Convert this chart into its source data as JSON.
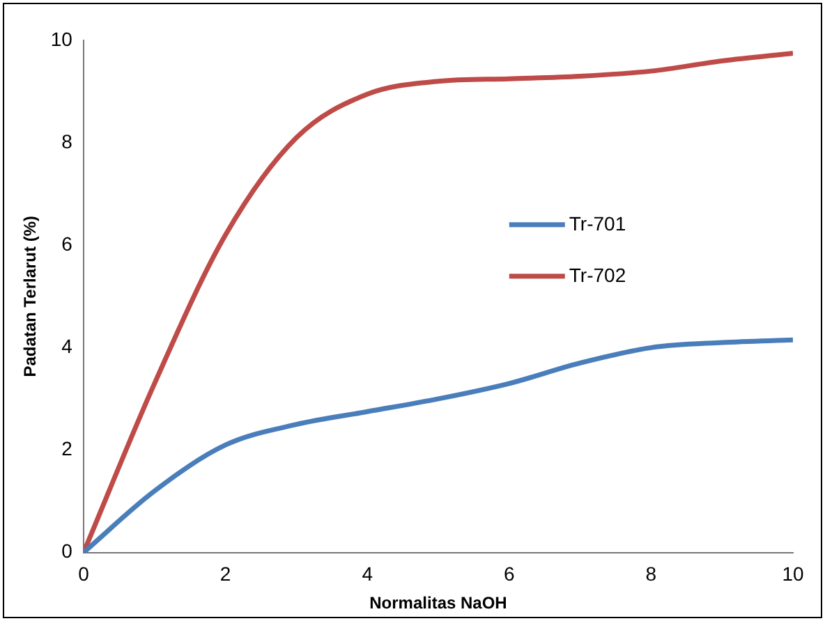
{
  "chart_data": {
    "type": "line",
    "xlabel": "Normalitas NaOH",
    "ylabel": "Padatan Terlarut (%)",
    "x": [
      0,
      1,
      2,
      3,
      4,
      5,
      6,
      7,
      8,
      9,
      10
    ],
    "series": [
      {
        "name": "Tr-701",
        "color": "#4a7ebb",
        "values": [
          0,
          1.2,
          2.1,
          2.5,
          2.75,
          3.0,
          3.3,
          3.7,
          4.0,
          4.1,
          4.15
        ]
      },
      {
        "name": "Tr-702",
        "color": "#be4b48",
        "values": [
          0,
          3.3,
          6.2,
          8.1,
          8.95,
          9.2,
          9.25,
          9.3,
          9.4,
          9.6,
          9.75
        ]
      }
    ],
    "xlim": [
      0,
      10
    ],
    "xticks": [
      0,
      2,
      4,
      6,
      8,
      10
    ],
    "ylim": [
      0,
      10
    ],
    "yticks": [
      0,
      2,
      4,
      6,
      8,
      10
    ],
    "grid": false,
    "legend": "right",
    "marker": "none",
    "line_style": "solid"
  }
}
